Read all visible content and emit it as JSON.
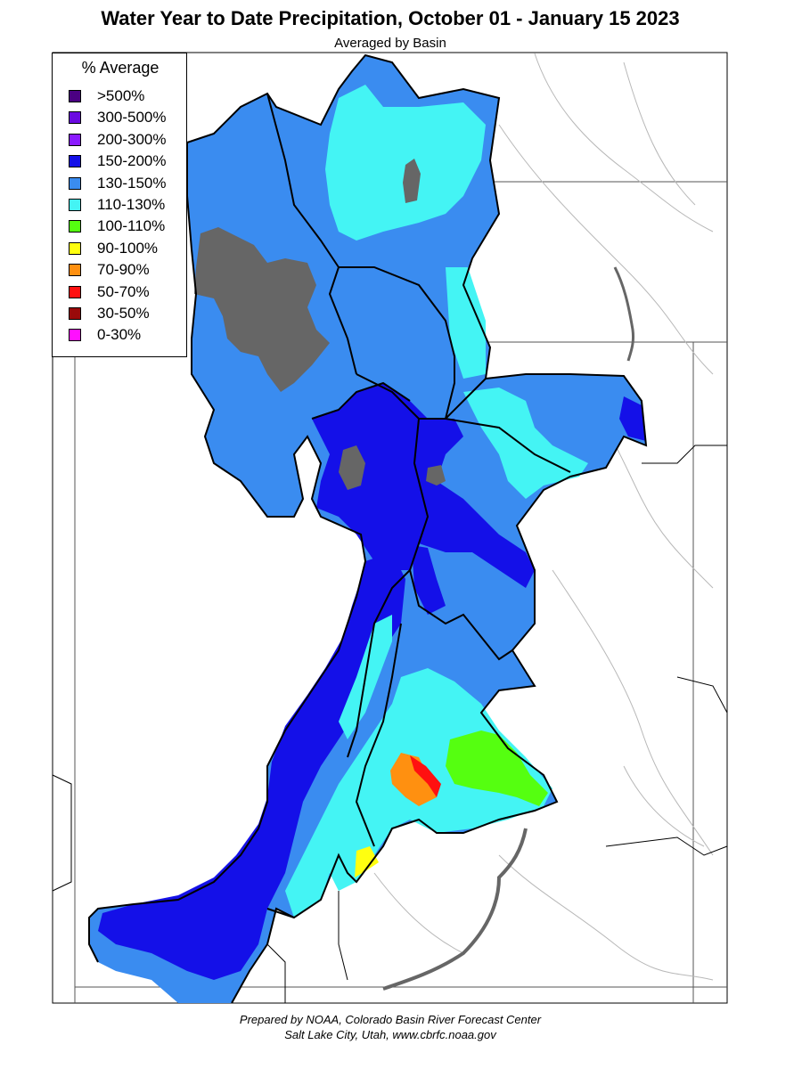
{
  "title": "Water Year to Date Precipitation, October 01  - January 15 2023",
  "subtitle": "Averaged by Basin",
  "legend": {
    "title": "% Average",
    "items": [
      {
        "label": ">500%",
        "color": "#4b0082"
      },
      {
        "label": "300-500%",
        "color": "#6a0ae0"
      },
      {
        "label": "200-300%",
        "color": "#8a1aff"
      },
      {
        "label": "150-200%",
        "color": "#1410e8"
      },
      {
        "label": "130-150%",
        "color": "#3a8cf0"
      },
      {
        "label": "110-130%",
        "color": "#44f4f4"
      },
      {
        "label": "100-110%",
        "color": "#55ff10"
      },
      {
        "label": "90-100%",
        "color": "#ffff10"
      },
      {
        "label": "70-90%",
        "color": "#ff9010"
      },
      {
        "label": "50-70%",
        "color": "#ff1010"
      },
      {
        "label": "30-50%",
        "color": "#9a0a0a"
      },
      {
        "label": "0-30%",
        "color": "#ff10ff"
      }
    ]
  },
  "credit": {
    "line1": "Prepared by NOAA, Colorado Basin River Forecast Center",
    "line2": "Salt Lake City, Utah, www.cbrfc.noaa.gov"
  },
  "colors": {
    "lake": "#666666",
    "basin_border": "#000000",
    "state_border": "#555555",
    "river": "#aaaaaa"
  }
}
